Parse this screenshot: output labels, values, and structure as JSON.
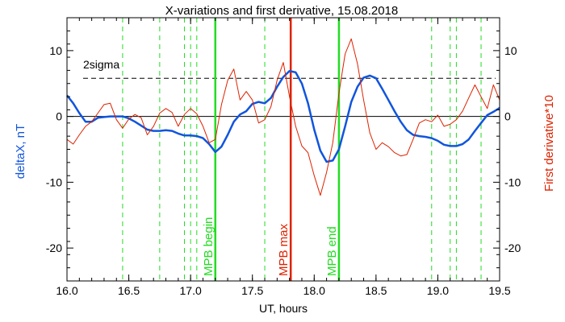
{
  "chart_data": {
    "type": "line",
    "title": "X-variations and first derivative, 15.08.2018",
    "xlabel": "UT, hours",
    "ylabel_left": "deltaX, nT",
    "ylabel_right": "First derivative*10",
    "xlim": [
      16.0,
      19.5
    ],
    "ylim": [
      -25,
      15
    ],
    "x_ticks": [
      "16.0",
      "16.5",
      "17.0",
      "17.5",
      "18.0",
      "18.5",
      "19.0",
      "19.5"
    ],
    "y_ticks_left": [
      "10",
      "0",
      "-10",
      "-20"
    ],
    "y_ticks_right": [
      "10",
      "0",
      "-10",
      "-20"
    ],
    "threshold": {
      "label": "2sigma",
      "value": 5.8
    },
    "events": [
      {
        "label": "MPB begin",
        "x": 17.2,
        "color": "#22dd22"
      },
      {
        "label": "MPB max",
        "x": 17.81,
        "color": "#dd2200"
      },
      {
        "label": "MPB end",
        "x": 18.2,
        "color": "#22dd22"
      }
    ],
    "green_dashed_x": [
      16.45,
      16.75,
      16.95,
      17.0,
      17.05,
      17.6,
      18.95,
      19.1,
      19.15,
      19.35
    ],
    "series": [
      {
        "color": "#1155dd",
        "x": [
          16.0,
          16.05,
          16.1,
          16.15,
          16.2,
          16.25,
          16.3,
          16.35,
          16.4,
          16.45,
          16.5,
          16.55,
          16.6,
          16.65,
          16.7,
          16.75,
          16.8,
          16.85,
          16.9,
          16.95,
          17.0,
          17.05,
          17.1,
          17.15,
          17.2,
          17.25,
          17.3,
          17.35,
          17.4,
          17.45,
          17.5,
          17.55,
          17.6,
          17.65,
          17.7,
          17.75,
          17.8,
          17.85,
          17.9,
          17.95,
          18.0,
          18.05,
          18.1,
          18.15,
          18.2,
          18.25,
          18.3,
          18.35,
          18.4,
          18.45,
          18.5,
          18.55,
          18.6,
          18.65,
          18.7,
          18.75,
          18.8,
          18.85,
          18.9,
          18.95,
          19.0,
          19.05,
          19.1,
          19.15,
          19.2,
          19.25,
          19.3,
          19.35,
          19.4,
          19.45,
          19.5
        ],
        "values": [
          3.2,
          2.0,
          0.5,
          -0.8,
          -0.8,
          -0.2,
          -0.1,
          0.0,
          0.0,
          0.0,
          -0.3,
          -0.8,
          -1.4,
          -2.0,
          -2.2,
          -2.2,
          -2.1,
          -2.2,
          -2.6,
          -2.9,
          -2.9,
          -3.0,
          -3.3,
          -4.2,
          -5.4,
          -4.6,
          -2.8,
          -0.8,
          0.3,
          0.8,
          1.9,
          2.2,
          2.0,
          2.8,
          4.5,
          6.0,
          6.9,
          6.7,
          5.0,
          2.0,
          -2.0,
          -5.2,
          -6.9,
          -6.7,
          -5.0,
          -1.5,
          2.2,
          4.5,
          5.9,
          6.2,
          5.8,
          4.2,
          2.5,
          0.8,
          -0.8,
          -2.1,
          -2.8,
          -3.0,
          -3.1,
          -3.3,
          -3.7,
          -4.3,
          -4.5,
          -4.5,
          -4.2,
          -3.5,
          -2.2,
          -1.0,
          0.2,
          0.7,
          1.3
        ]
      },
      {
        "color": "#dd2200",
        "x": [
          16.0,
          16.05,
          16.1,
          16.15,
          16.2,
          16.25,
          16.3,
          16.35,
          16.4,
          16.45,
          16.5,
          16.55,
          16.6,
          16.65,
          16.7,
          16.75,
          16.8,
          16.85,
          16.9,
          16.95,
          17.0,
          17.05,
          17.1,
          17.15,
          17.2,
          17.25,
          17.3,
          17.35,
          17.4,
          17.45,
          17.5,
          17.55,
          17.6,
          17.65,
          17.7,
          17.75,
          17.8,
          17.85,
          17.9,
          17.95,
          18.0,
          18.05,
          18.1,
          18.15,
          18.2,
          18.25,
          18.3,
          18.35,
          18.4,
          18.45,
          18.5,
          18.55,
          18.6,
          18.65,
          18.7,
          18.75,
          18.8,
          18.85,
          18.9,
          18.95,
          19.0,
          19.05,
          19.1,
          19.15,
          19.2,
          19.25,
          19.3,
          19.35,
          19.4,
          19.45,
          19.5
        ],
        "values": [
          -3.5,
          -4.2,
          -2.8,
          -1.5,
          -0.8,
          0.5,
          1.8,
          2.0,
          -0.5,
          -1.8,
          -0.4,
          0.3,
          -0.2,
          -2.8,
          -1.5,
          0.5,
          1.2,
          0.6,
          -1.5,
          0.3,
          1.2,
          0.4,
          -1.5,
          -4.0,
          -3.5,
          1.8,
          5.5,
          7.2,
          2.5,
          3.8,
          2.5,
          -1.0,
          -0.5,
          1.5,
          5.5,
          8.2,
          3.0,
          -1.5,
          -4.5,
          -5.5,
          -9.0,
          -12.0,
          -8.5,
          -4.0,
          3.5,
          9.5,
          11.8,
          8.0,
          2.5,
          -2.5,
          -5.0,
          -4.0,
          -4.6,
          -5.5,
          -6.0,
          -5.8,
          -3.5,
          -1.0,
          -0.5,
          -0.8,
          0.2,
          -1.5,
          -1.2,
          -0.5,
          0.8,
          2.8,
          4.8,
          3.0,
          1.2,
          4.8,
          2.5
        ]
      }
    ]
  }
}
